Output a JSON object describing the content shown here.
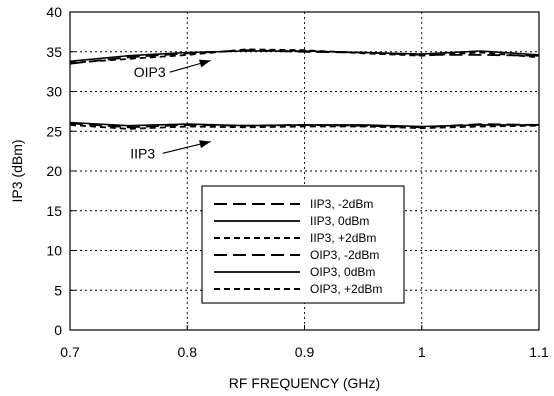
{
  "chart_data": {
    "type": "line",
    "title": "",
    "xlabel": "RF FREQUENCY (GHz)",
    "ylabel": "IP3 (dBm)",
    "xlim": [
      0.7,
      1.1
    ],
    "ylim": [
      0,
      40
    ],
    "xticks": [
      "0.7",
      "0.8",
      "0.9",
      "1",
      "1.1"
    ],
    "yticks": [
      "0",
      "5",
      "10",
      "15",
      "20",
      "25",
      "30",
      "35",
      "40"
    ],
    "grid": true,
    "legend_position": "center-right",
    "annotations": [
      {
        "text": "OIP3",
        "x": 0.768,
        "y": 31.8,
        "arrow_to_x": 0.82,
        "arrow_to_y": 33.9
      },
      {
        "text": "IIP3",
        "x": 0.762,
        "y": 21.6,
        "arrow_to_x": 0.82,
        "arrow_to_y": 23.7
      }
    ],
    "series": [
      {
        "name": "IIP3,  -2dBm",
        "style": "long-dash",
        "color": "#000000",
        "x": [
          0.7,
          0.75,
          0.8,
          0.85,
          0.9,
          0.95,
          1.0,
          1.05,
          1.1
        ],
        "y": [
          26.0,
          25.5,
          25.8,
          25.7,
          25.8,
          25.7,
          25.5,
          25.9,
          25.8
        ]
      },
      {
        "name": "IIP3,  0dBm",
        "style": "solid",
        "color": "#000000",
        "x": [
          0.7,
          0.75,
          0.8,
          0.85,
          0.9,
          0.95,
          1.0,
          1.05,
          1.1
        ],
        "y": [
          26.1,
          25.7,
          25.9,
          25.7,
          25.8,
          25.8,
          25.6,
          25.8,
          25.8
        ]
      },
      {
        "name": "IIP3, +2dBm",
        "style": "short-dash",
        "color": "#000000",
        "x": [
          0.7,
          0.75,
          0.8,
          0.85,
          0.9,
          0.95,
          1.0,
          1.05,
          1.1
        ],
        "y": [
          25.8,
          25.3,
          25.6,
          25.5,
          25.6,
          25.6,
          25.4,
          25.6,
          25.7
        ]
      },
      {
        "name": "OIP3,  -2dBm",
        "style": "long-dash",
        "color": "#000000",
        "x": [
          0.7,
          0.75,
          0.8,
          0.85,
          0.9,
          0.95,
          1.0,
          1.05,
          1.1
        ],
        "y": [
          33.5,
          34.3,
          34.8,
          35.2,
          35.0,
          34.9,
          34.6,
          34.6,
          34.5
        ]
      },
      {
        "name": "OIP3,  0dBm",
        "style": "solid",
        "color": "#000000",
        "x": [
          0.7,
          0.75,
          0.8,
          0.85,
          0.9,
          0.95,
          1.0,
          1.05,
          1.1
        ],
        "y": [
          33.8,
          34.5,
          34.9,
          35.1,
          35.1,
          34.9,
          34.7,
          35.1,
          34.6
        ]
      },
      {
        "name": "OIP3, +2dBm",
        "style": "short-dash",
        "color": "#000000",
        "x": [
          0.7,
          0.75,
          0.8,
          0.85,
          0.9,
          0.95,
          1.0,
          1.05,
          1.1
        ],
        "y": [
          33.6,
          34.1,
          34.6,
          35.3,
          35.2,
          34.8,
          34.5,
          34.9,
          34.3
        ]
      }
    ]
  }
}
